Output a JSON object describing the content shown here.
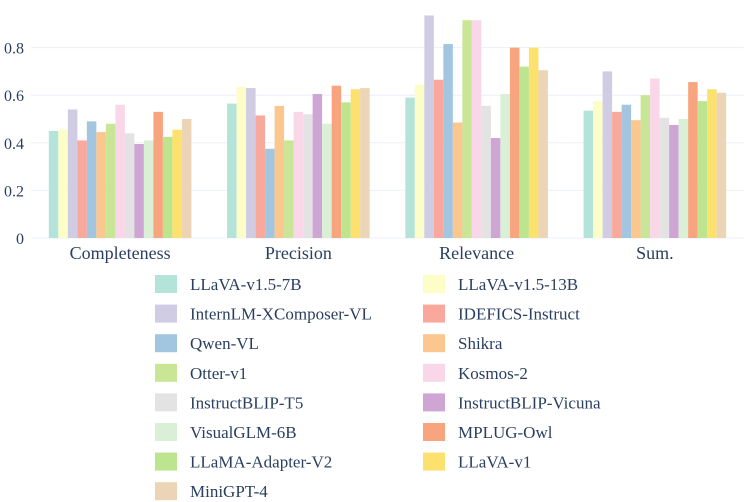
{
  "chart_data": {
    "type": "bar",
    "title": "",
    "xlabel": "",
    "ylabel": "",
    "ylim": [
      0,
      1.0
    ],
    "yticks": [
      0,
      0.2,
      0.4,
      0.6,
      0.8
    ],
    "ytick_labels": [
      "0",
      "0.2",
      "0.4",
      "0.6",
      "0.8"
    ],
    "categories": [
      "Completeness",
      "Precision",
      "Relevance",
      "Sum."
    ],
    "legend_position": "bottom",
    "series": [
      {
        "name": "LLaVA-v1.5-7B",
        "color": "#b4e3d9",
        "values": [
          0.45,
          0.565,
          0.59,
          0.535
        ]
      },
      {
        "name": "LLaVA-v1.5-13B",
        "color": "#fdfdc8",
        "values": [
          0.455,
          0.635,
          0.645,
          0.575
        ]
      },
      {
        "name": "InternLM-XComposer-VL",
        "color": "#cfcce4",
        "values": [
          0.54,
          0.63,
          0.935,
          0.7
        ]
      },
      {
        "name": "IDEFICS-Instruct",
        "color": "#f9a99c",
        "values": [
          0.41,
          0.515,
          0.665,
          0.53
        ]
      },
      {
        "name": "Qwen-VL",
        "color": "#a3c6e0",
        "values": [
          0.49,
          0.375,
          0.815,
          0.56
        ]
      },
      {
        "name": "Shikra",
        "color": "#fcc68f",
        "values": [
          0.445,
          0.555,
          0.485,
          0.495
        ]
      },
      {
        "name": "Otter-v1",
        "color": "#c9e596",
        "values": [
          0.48,
          0.41,
          0.915,
          0.6
        ]
      },
      {
        "name": "Kosmos-2",
        "color": "#f9d7e9",
        "values": [
          0.56,
          0.53,
          0.915,
          0.67
        ]
      },
      {
        "name": "InstructBLIP-T5",
        "color": "#e3e3e3",
        "values": [
          0.44,
          0.52,
          0.555,
          0.505
        ]
      },
      {
        "name": "InstructBLIP-Vicuna",
        "color": "#cfa5d4",
        "values": [
          0.395,
          0.605,
          0.42,
          0.475
        ]
      },
      {
        "name": "VisualGLM-6B",
        "color": "#d9efd6",
        "values": [
          0.41,
          0.48,
          0.605,
          0.5
        ]
      },
      {
        "name": "MPLUG-Owl",
        "color": "#f8a57f",
        "values": [
          0.53,
          0.64,
          0.8,
          0.655
        ]
      },
      {
        "name": "LLaMA-Adapter-V2",
        "color": "#bde58f",
        "values": [
          0.425,
          0.57,
          0.72,
          0.575
        ]
      },
      {
        "name": "LLaVA-v1",
        "color": "#fde16f",
        "values": [
          0.455,
          0.625,
          0.8,
          0.625
        ]
      },
      {
        "name": "MiniGPT-4",
        "color": "#ebd5b6",
        "values": [
          0.5,
          0.63,
          0.705,
          0.61
        ]
      }
    ]
  }
}
